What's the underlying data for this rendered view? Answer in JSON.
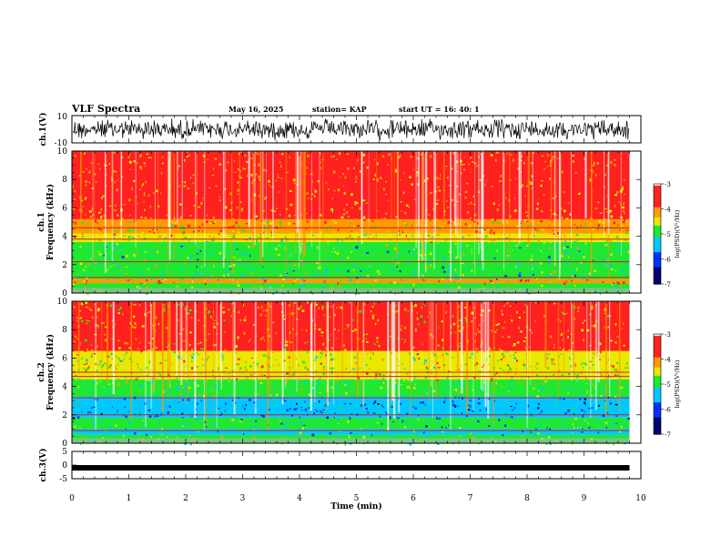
{
  "header": {
    "title": "VLF Spectra",
    "date": "May 16, 2025",
    "station": "station= KAP",
    "start": "start  UT  =   16: 40: 1"
  },
  "colors": {
    "red": "#ff2020",
    "orange": "#ff9a00",
    "yellow": "#e8e800",
    "green": "#20e830",
    "cyan": "#00c8ff",
    "blue": "#0030ff",
    "navy": "#000070",
    "white": "#ffffff"
  },
  "chart_data": [
    {
      "type": "line",
      "name": "ch1-waveform",
      "ylabel": "ch.1(V)",
      "ylim": [
        -10,
        10
      ],
      "y_ticks": [
        "10",
        "-10"
      ],
      "xlim": [
        0,
        10
      ],
      "description_values": "noise between -8 and 8 V, data to 9.8 min"
    },
    {
      "type": "heatmap",
      "name": "ch1-spectrogram",
      "ylabel": "ch.1\nFrequency  (kHz)",
      "ylim": [
        0,
        10
      ],
      "y_ticks": [
        "0",
        "2",
        "4",
        "6",
        "8",
        "10"
      ],
      "xlim": [
        0,
        10
      ],
      "data_end_min": 9.8,
      "colorbar": {
        "label": "log(PSD)(V²/Hz)",
        "range": [
          -7,
          -3
        ],
        "ticks": [
          "-3",
          "-4",
          "-5",
          "-6",
          "-7"
        ]
      },
      "bands": [
        {
          "f_low": 0.0,
          "f_high": 0.7,
          "psd": -4.8
        },
        {
          "f_low": 0.7,
          "f_high": 1.0,
          "psd": -4.0
        },
        {
          "f_low": 1.0,
          "f_high": 3.6,
          "psd": -5.0
        },
        {
          "f_low": 3.6,
          "f_high": 4.2,
          "psd": -4.6
        },
        {
          "f_low": 4.2,
          "f_high": 5.2,
          "psd": -4.2
        },
        {
          "f_low": 5.2,
          "f_high": 10.0,
          "psd": -3.8
        }
      ],
      "lines_khz": [
        2.2,
        1.1,
        3.8,
        4.6
      ]
    },
    {
      "type": "heatmap",
      "name": "ch2-spectrogram",
      "ylabel": "ch.2\nFrequency  (kHz)",
      "ylim": [
        0,
        10
      ],
      "y_ticks": [
        "0",
        "2",
        "4",
        "6",
        "8",
        "10"
      ],
      "xlim": [
        0,
        10
      ],
      "data_end_min": 9.8,
      "colorbar": {
        "label": "log(PSD)(V²/Hz)",
        "range": [
          -7,
          -3
        ],
        "ticks": [
          "-3",
          "-4",
          "-5",
          "-6",
          "-7"
        ]
      },
      "bands": [
        {
          "f_low": 0.0,
          "f_high": 0.6,
          "psd": -4.9
        },
        {
          "f_low": 0.6,
          "f_high": 1.0,
          "psd": -5.2
        },
        {
          "f_low": 1.0,
          "f_high": 1.8,
          "psd": -5.1
        },
        {
          "f_low": 1.8,
          "f_high": 3.3,
          "psd": -5.6
        },
        {
          "f_low": 3.3,
          "f_high": 4.5,
          "psd": -4.9
        },
        {
          "f_low": 4.5,
          "f_high": 6.5,
          "psd": -4.4
        },
        {
          "f_low": 6.5,
          "f_high": 10.0,
          "psd": -3.9
        }
      ],
      "lines_khz": [
        2.0,
        4.7,
        5.0,
        3.2,
        0.9
      ]
    },
    {
      "type": "line",
      "name": "ch3-waveform",
      "ylabel": "ch.3(V)",
      "ylim": [
        -5,
        5
      ],
      "y_ticks": [
        "5",
        "0",
        "-5"
      ],
      "xlim": [
        0,
        10
      ],
      "level_v": -1.0,
      "xlabel": "Time  (min)",
      "x_ticks": [
        "0",
        "1",
        "2",
        "3",
        "4",
        "5",
        "6",
        "7",
        "8",
        "9",
        "10"
      ]
    }
  ]
}
